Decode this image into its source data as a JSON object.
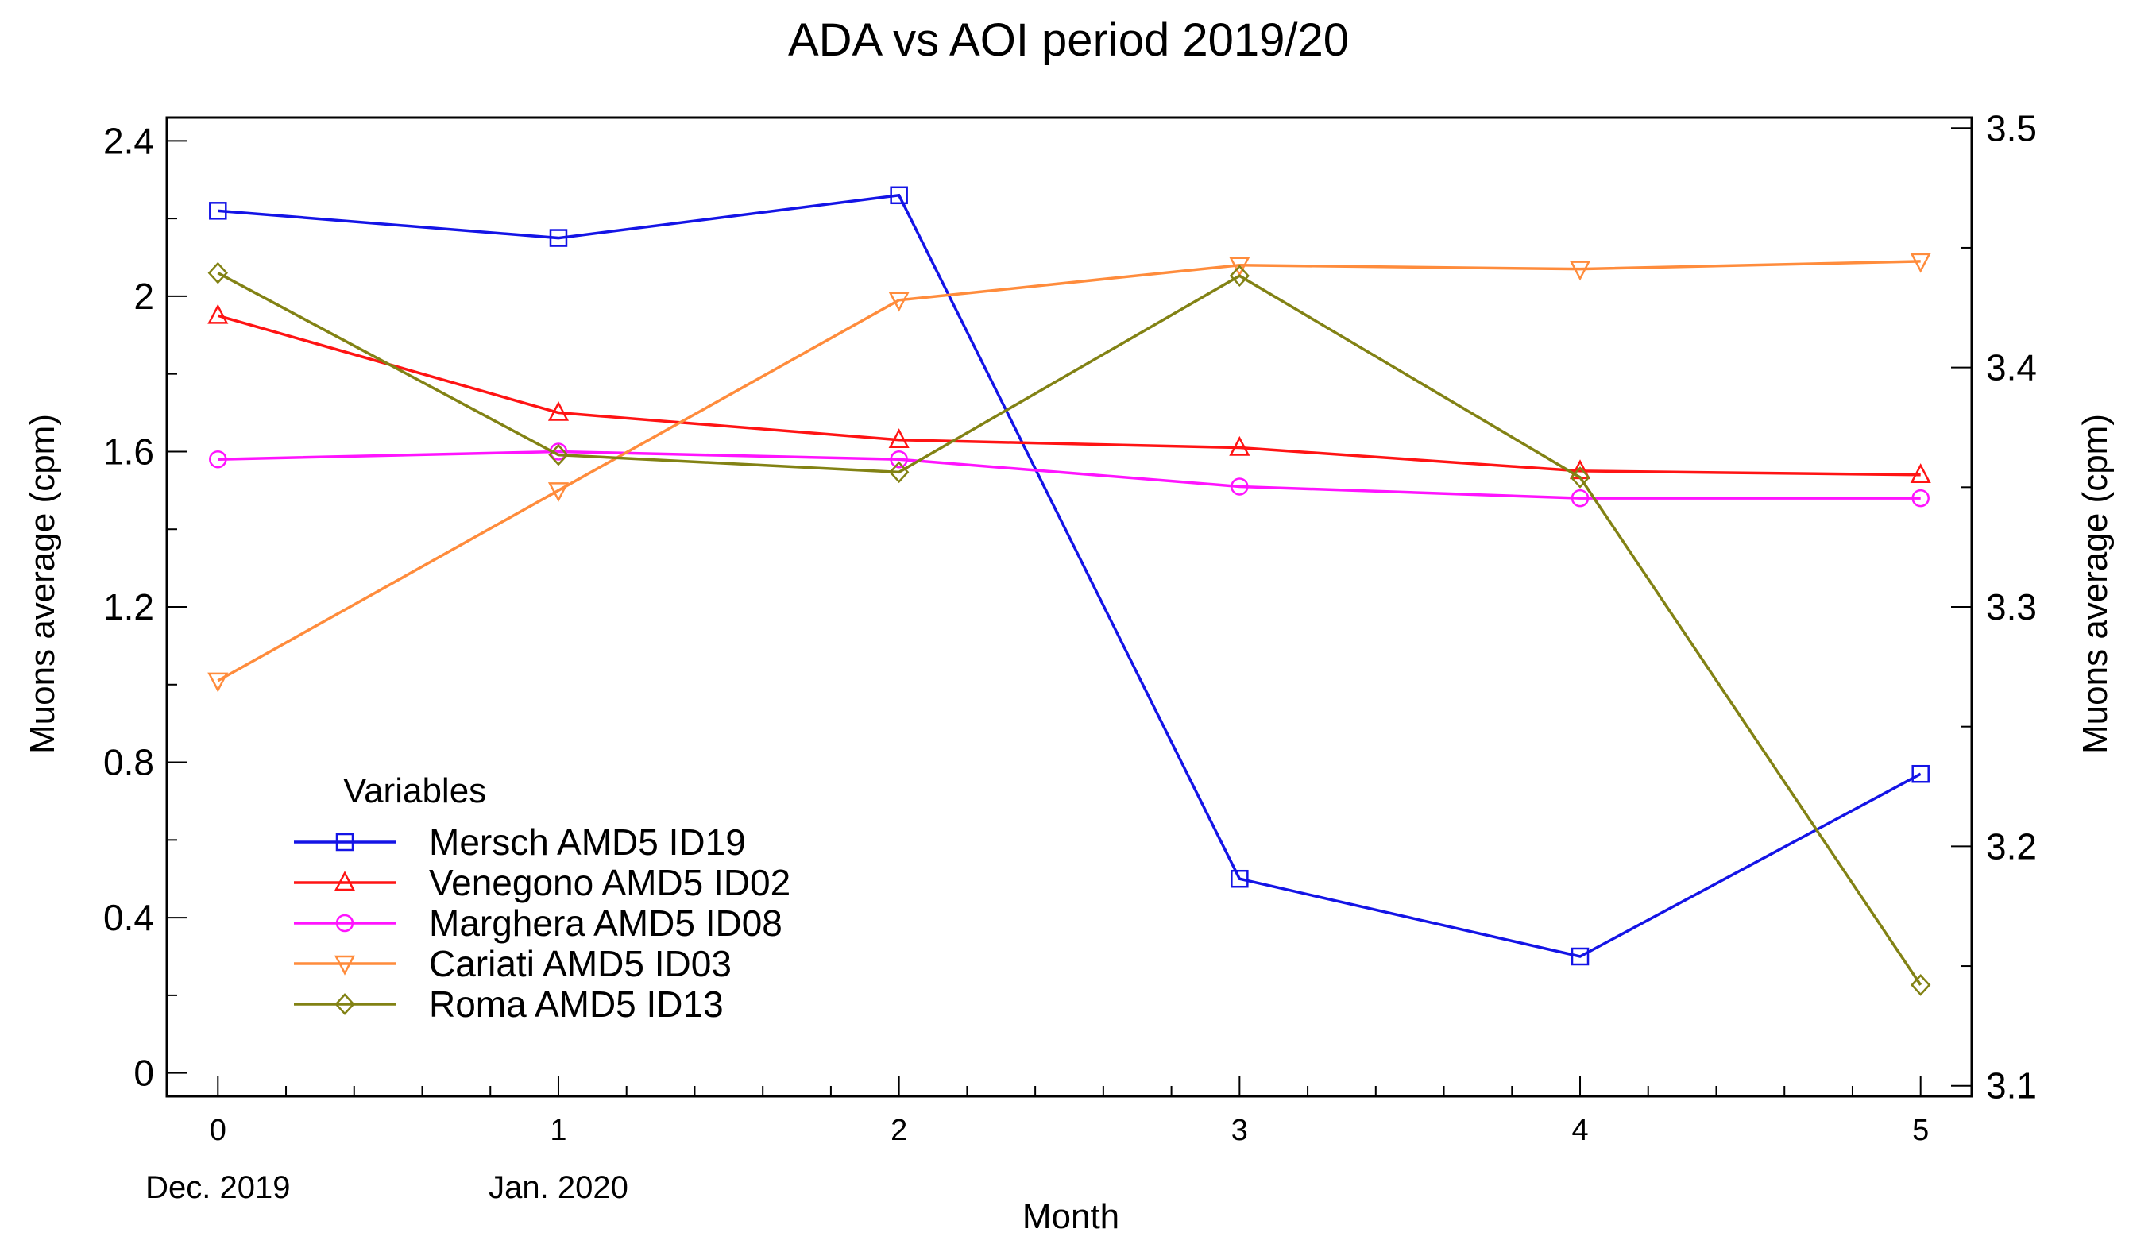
{
  "chart_data": {
    "type": "line",
    "title": "ADA vs AOI period 2019/20",
    "xlabel": "Month",
    "ylabel": "Muons average (cpm)",
    "y2label": "Muons average (cpm)",
    "x": [
      0,
      1,
      2,
      3,
      4,
      5
    ],
    "x_ticks": [
      "0",
      "1",
      "2",
      "3",
      "4",
      "5"
    ],
    "x_date_labels": [
      {
        "x": 0,
        "text": "Dec. 2019"
      },
      {
        "x": 1,
        "text": "Jan. 2020"
      }
    ],
    "xlim": [
      -0.15,
      5.15
    ],
    "ylim": [
      -0.06,
      2.46
    ],
    "y_ticks": [
      "0",
      "0.4",
      "0.8",
      "1.2",
      "1.6",
      "2",
      "2.4"
    ],
    "y_tick_values": [
      0,
      0.4,
      0.8,
      1.2,
      1.6,
      2.0,
      2.4
    ],
    "y2lim": [
      3.0956,
      3.5044
    ],
    "y2_ticks": [
      "3.1",
      "3.2",
      "3.3",
      "3.4",
      "3.5"
    ],
    "y2_tick_values": [
      3.1,
      3.2,
      3.3,
      3.4,
      3.5
    ],
    "legend_title": "Variables",
    "legend_position": "lower-left",
    "series": [
      {
        "name": "Mersch AMD5 ID19",
        "axis": "left",
        "marker": "square",
        "color": "#1414e6",
        "values": [
          2.22,
          2.15,
          2.26,
          0.5,
          0.3,
          0.77
        ]
      },
      {
        "name": "Venegono AMD5 ID02",
        "axis": "left",
        "marker": "triangle-up",
        "color": "#ff1414",
        "values": [
          1.95,
          1.7,
          1.63,
          1.61,
          1.55,
          1.54
        ]
      },
      {
        "name": "Marghera AMD5 ID08",
        "axis": "left",
        "marker": "circle",
        "color": "#ff14ff",
        "values": [
          1.58,
          1.6,
          1.58,
          1.51,
          1.48,
          1.48
        ]
      },
      {
        "name": "Cariati AMD5 ID03",
        "axis": "left",
        "marker": "triangle-down",
        "color": "#ff8c3c",
        "values": [
          1.01,
          1.5,
          1.99,
          2.08,
          2.07,
          2.09
        ]
      },
      {
        "name": "Roma AMD5 ID13",
        "axis": "right",
        "marker": "diamond",
        "color": "#828214",
        "values": [
          3.4395,
          3.3635,
          3.3563,
          3.4383,
          3.3541,
          3.1421
        ]
      }
    ]
  }
}
